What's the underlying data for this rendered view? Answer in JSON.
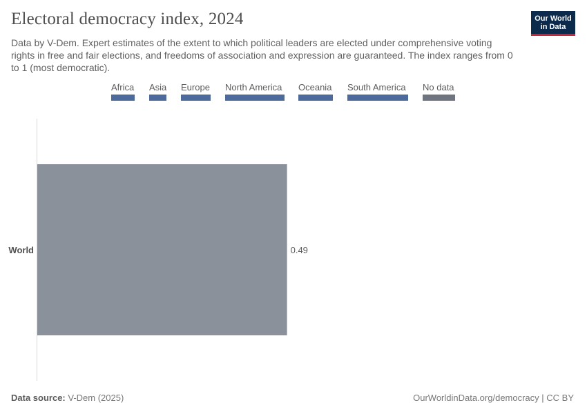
{
  "header": {
    "title": "Electoral democracy index, 2024",
    "subtitle": "Data by V-Dem. Expert estimates of the extent to which political leaders are elected under comprehensive voting rights in free and fair elections, and freedoms of association and expression are guaranteed. The index ranges from 0 to 1 (most democratic).",
    "logo_line1": "Our World",
    "logo_line2": "in Data"
  },
  "legend": {
    "items": [
      {
        "label": "Africa",
        "color": "#4c6a9c"
      },
      {
        "label": "Asia",
        "color": "#4c6a9c"
      },
      {
        "label": "Europe",
        "color": "#4c6a9c"
      },
      {
        "label": "North America",
        "color": "#4c6a9c"
      },
      {
        "label": "Oceania",
        "color": "#4c6a9c"
      },
      {
        "label": "South America",
        "color": "#4c6a9c"
      },
      {
        "label": "No data",
        "color": "#6e7581"
      }
    ]
  },
  "chart_data": {
    "type": "bar",
    "orientation": "horizontal",
    "categories": [
      "World"
    ],
    "values": [
      0.49
    ],
    "value_labels": [
      "0.49"
    ],
    "bar_color": "#8b919b",
    "xlim": [
      0,
      1
    ],
    "title": "Electoral democracy index, 2024",
    "xlabel": "",
    "ylabel": "",
    "grid": false,
    "legend_position": "top"
  },
  "footer": {
    "source_label": "Data source:",
    "source_value": "V-Dem (2025)",
    "url": "OurWorldinData.org/democracy | CC BY"
  }
}
